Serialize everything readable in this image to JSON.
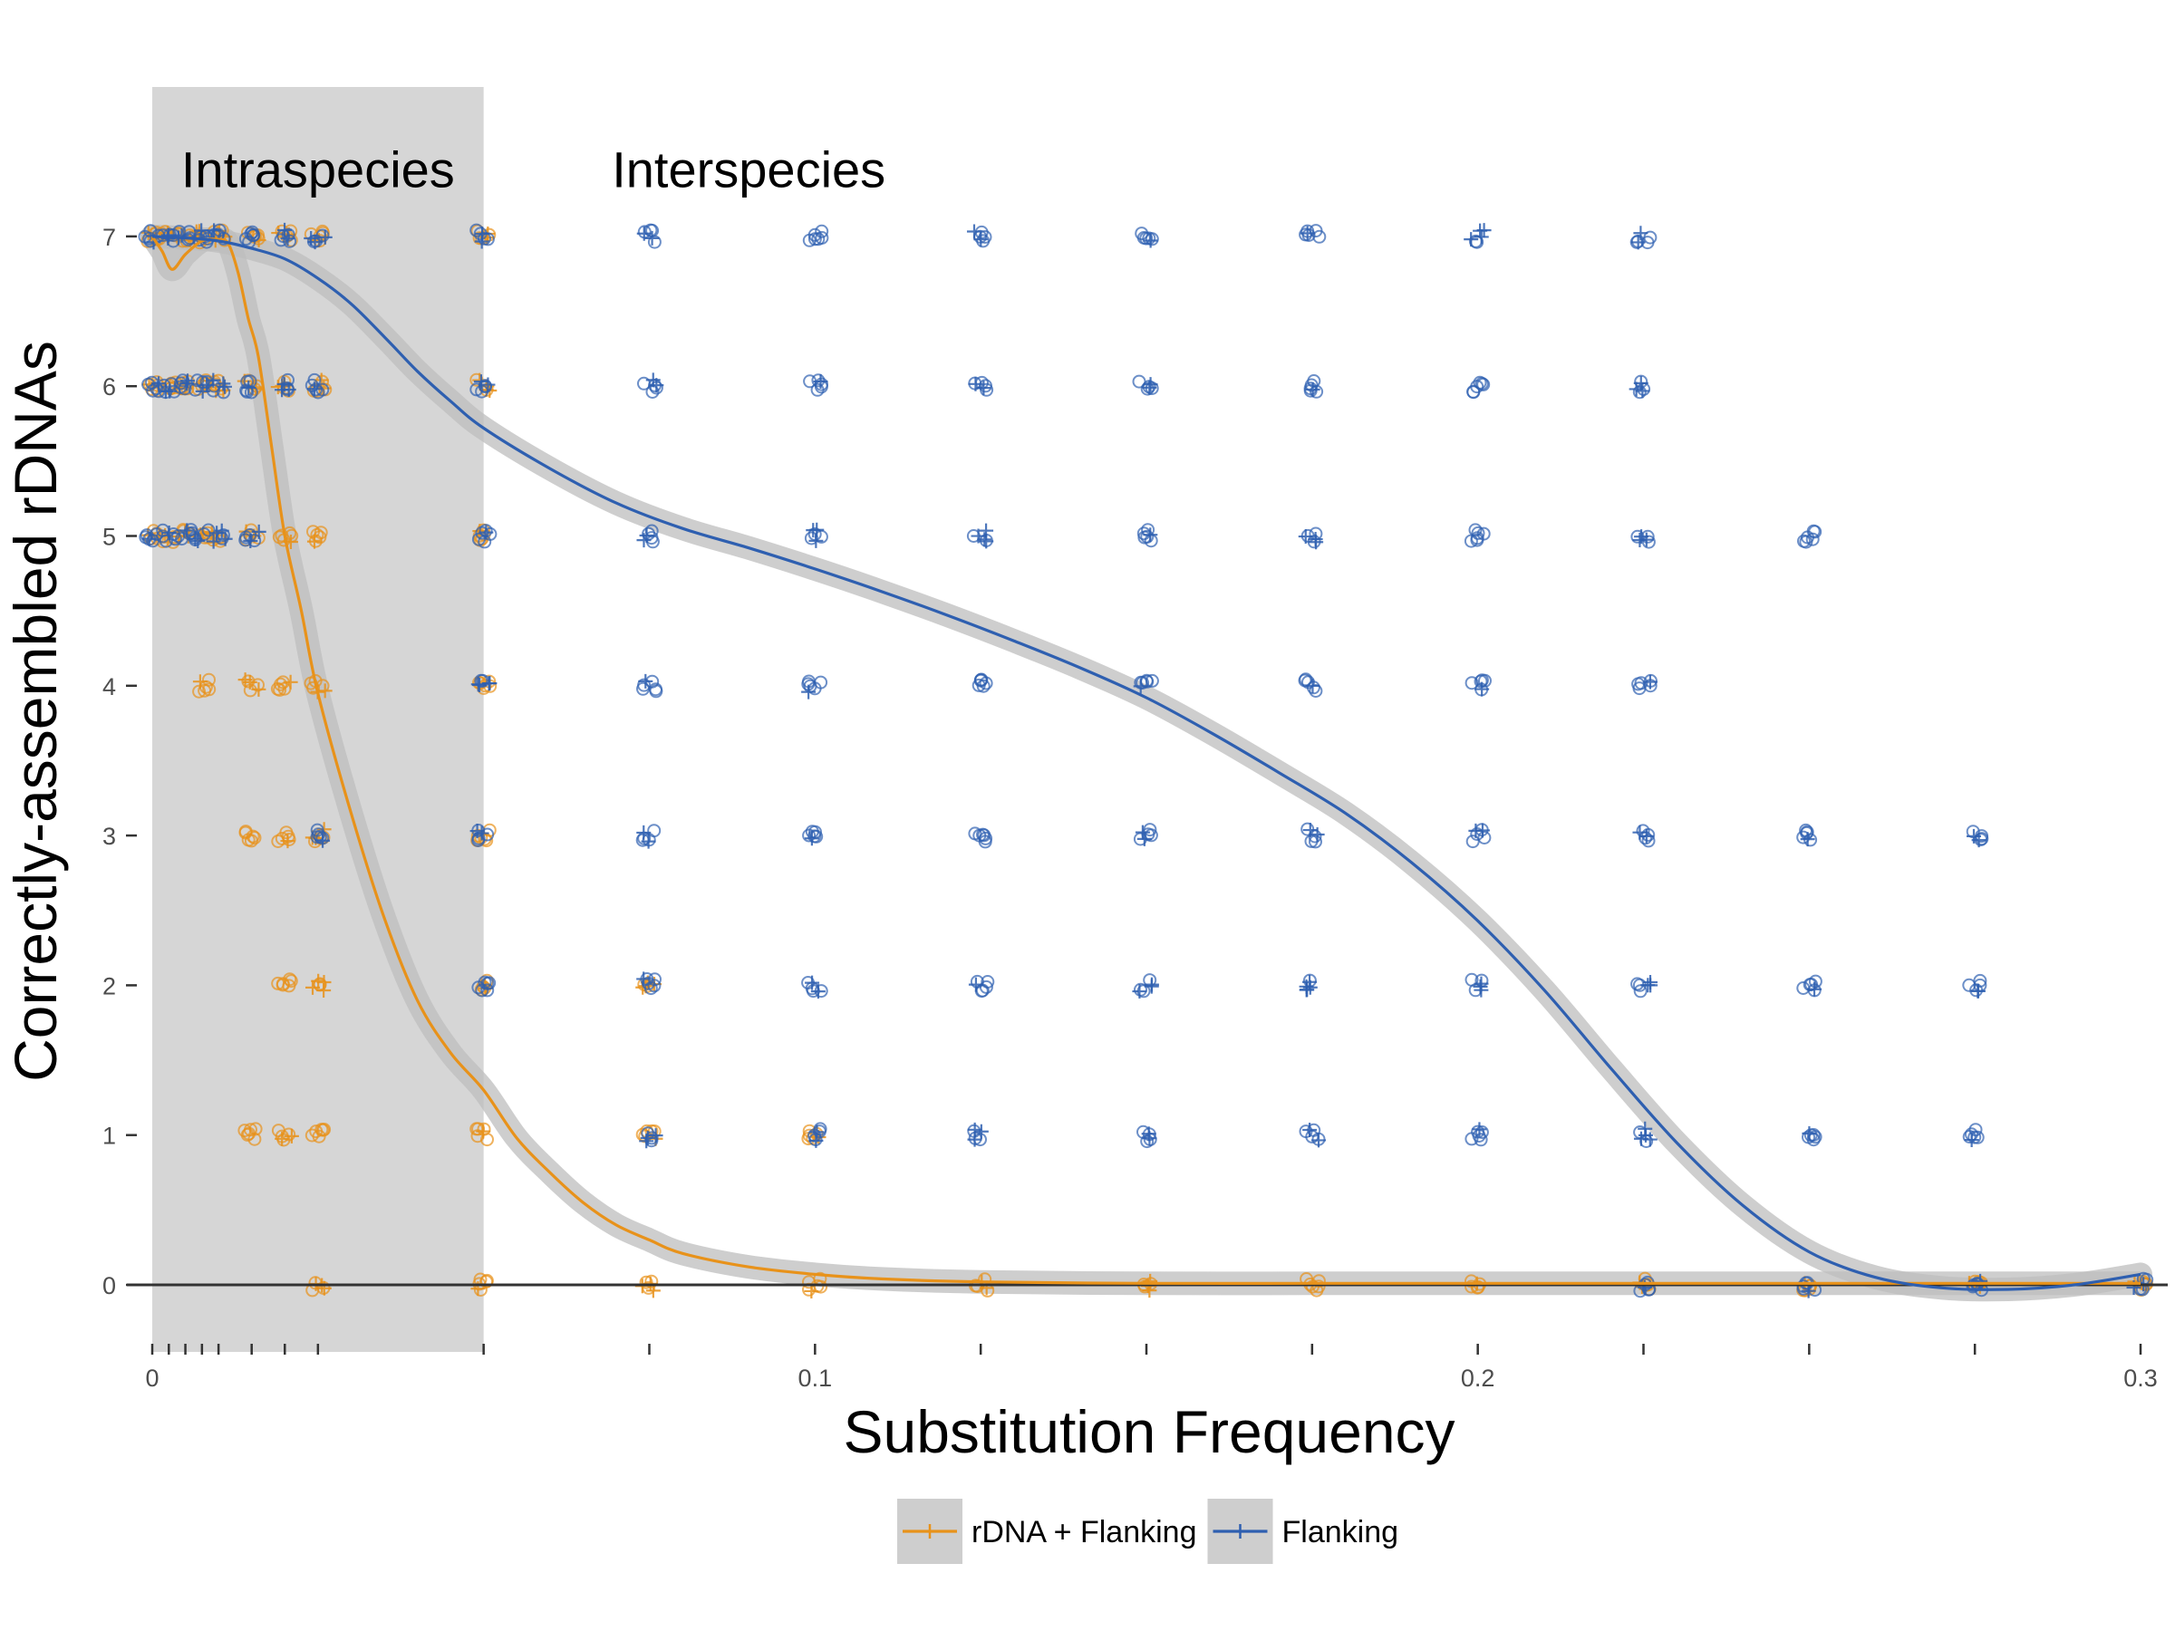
{
  "chart_data": {
    "type": "scatter",
    "xlabel": "Substitution Frequency",
    "ylabel": "Correctly-assembled rDNAs",
    "xlim": [
      0,
      0.3
    ],
    "ylim": [
      -0.45,
      7.5
    ],
    "x_tick_labels": [
      {
        "value": 0,
        "label": "0"
      },
      {
        "value": 0.1,
        "label": "0.1"
      },
      {
        "value": 0.2,
        "label": "0.2"
      },
      {
        "value": 0.3,
        "label": "0.3"
      }
    ],
    "x_minor_ticks": [
      0,
      0.0025,
      0.005,
      0.0075,
      0.01,
      0.015,
      0.02,
      0.025,
      0.05,
      0.075,
      0.1,
      0.125,
      0.15,
      0.175,
      0.2,
      0.225,
      0.25,
      0.275,
      0.3
    ],
    "y_ticks": [
      0,
      1,
      2,
      3,
      4,
      5,
      6,
      7
    ],
    "shaded_region": {
      "x": [
        0,
        0.05
      ],
      "color": "#d6d6d6"
    },
    "region_labels": [
      {
        "label": "Intraspecies",
        "x": 0.025,
        "y": 7.45
      },
      {
        "label": "Interspecies",
        "x": 0.09,
        "y": 7.45
      }
    ],
    "grid": false,
    "legend": {
      "position": "bottom"
    },
    "colors": {
      "rdna_flanking": "#E8921A",
      "flanking": "#2E5FB0",
      "band": "#bdbdbd",
      "zero_line": "#333333"
    },
    "series": [
      {
        "name": "rDNA + Flanking",
        "color": "#E8921A",
        "points_by_x": [
          {
            "x": 0,
            "y": [
              7,
              6,
              5
            ]
          },
          {
            "x": 0.0025,
            "y": [
              7,
              6,
              5
            ]
          },
          {
            "x": 0.005,
            "y": [
              7,
              6,
              5
            ]
          },
          {
            "x": 0.0075,
            "y": [
              7,
              6,
              5,
              4
            ]
          },
          {
            "x": 0.01,
            "y": [
              7,
              6,
              5
            ]
          },
          {
            "x": 0.015,
            "y": [
              7,
              6,
              5,
              4,
              3,
              1
            ]
          },
          {
            "x": 0.02,
            "y": [
              7,
              6,
              5,
              4,
              3,
              2,
              1
            ]
          },
          {
            "x": 0.025,
            "y": [
              7,
              6,
              5,
              4,
              3,
              2,
              1,
              0
            ]
          },
          {
            "x": 0.05,
            "y": [
              7,
              6,
              5,
              4,
              3,
              2,
              1,
              0
            ]
          },
          {
            "x": 0.075,
            "y": [
              2,
              1,
              0
            ]
          },
          {
            "x": 0.1,
            "y": [
              1,
              0
            ]
          },
          {
            "x": 0.125,
            "y": [
              0
            ]
          },
          {
            "x": 0.15,
            "y": [
              0
            ]
          },
          {
            "x": 0.175,
            "y": [
              0
            ]
          },
          {
            "x": 0.2,
            "y": [
              0
            ]
          },
          {
            "x": 0.225,
            "y": [
              0
            ]
          },
          {
            "x": 0.25,
            "y": [
              0
            ]
          },
          {
            "x": 0.275,
            "y": [
              0
            ]
          },
          {
            "x": 0.3,
            "y": [
              0
            ]
          }
        ],
        "smooth": {
          "x": [
            0,
            0.0015,
            0.003,
            0.005,
            0.0075,
            0.01,
            0.0115,
            0.013,
            0.0145,
            0.016,
            0.018,
            0.02,
            0.0225,
            0.025,
            0.03,
            0.035,
            0.04,
            0.045,
            0.05,
            0.055,
            0.06,
            0.065,
            0.07,
            0.075,
            0.08,
            0.09,
            0.1,
            0.11,
            0.125,
            0.15,
            0.175,
            0.2,
            0.225,
            0.25,
            0.275,
            0.3
          ],
          "y": [
            7,
            6.9,
            6.78,
            6.88,
            6.97,
            6.98,
            6.95,
            6.75,
            6.45,
            6.2,
            5.6,
            5.0,
            4.5,
            3.95,
            3.15,
            2.45,
            1.9,
            1.55,
            1.3,
            0.98,
            0.75,
            0.55,
            0.4,
            0.3,
            0.21,
            0.12,
            0.07,
            0.04,
            0.02,
            0.01,
            0.01,
            0.01,
            0.01,
            0.01,
            0.01,
            0.01
          ]
        }
      },
      {
        "name": "Flanking",
        "color": "#2E5FB0",
        "points_by_x": [
          {
            "x": 0,
            "y": [
              7,
              6,
              5
            ]
          },
          {
            "x": 0.0025,
            "y": [
              7,
              6,
              5
            ]
          },
          {
            "x": 0.005,
            "y": [
              7,
              6,
              5
            ]
          },
          {
            "x": 0.0075,
            "y": [
              7,
              6,
              5
            ]
          },
          {
            "x": 0.01,
            "y": [
              7,
              6,
              5
            ]
          },
          {
            "x": 0.015,
            "y": [
              7,
              6,
              5
            ]
          },
          {
            "x": 0.02,
            "y": [
              7,
              6
            ]
          },
          {
            "x": 0.025,
            "y": [
              7,
              6,
              3
            ]
          },
          {
            "x": 0.05,
            "y": [
              7,
              6,
              5,
              4,
              3,
              2
            ]
          },
          {
            "x": 0.075,
            "y": [
              7,
              6,
              5,
              4,
              3,
              2,
              1
            ]
          },
          {
            "x": 0.1,
            "y": [
              7,
              6,
              5,
              4,
              3,
              2,
              1
            ]
          },
          {
            "x": 0.125,
            "y": [
              7,
              6,
              5,
              4,
              3,
              2,
              1
            ]
          },
          {
            "x": 0.15,
            "y": [
              7,
              6,
              5,
              4,
              3,
              2,
              1
            ]
          },
          {
            "x": 0.175,
            "y": [
              7,
              6,
              5,
              4,
              3,
              2,
              1
            ]
          },
          {
            "x": 0.2,
            "y": [
              7,
              6,
              5,
              4,
              3,
              2,
              1
            ]
          },
          {
            "x": 0.225,
            "y": [
              7,
              6,
              5,
              4,
              3,
              2,
              1,
              0
            ]
          },
          {
            "x": 0.25,
            "y": [
              5,
              3,
              2,
              1,
              0
            ]
          },
          {
            "x": 0.275,
            "y": [
              3,
              2,
              1,
              0
            ]
          },
          {
            "x": 0.3,
            "y": [
              0
            ]
          }
        ],
        "smooth": {
          "x": [
            0,
            0.005,
            0.01,
            0.015,
            0.02,
            0.025,
            0.03,
            0.035,
            0.04,
            0.045,
            0.05,
            0.06,
            0.07,
            0.08,
            0.09,
            0.1,
            0.11,
            0.12,
            0.13,
            0.14,
            0.15,
            0.16,
            0.17,
            0.18,
            0.19,
            0.2,
            0.21,
            0.22,
            0.23,
            0.24,
            0.25,
            0.26,
            0.27,
            0.28,
            0.29,
            0.3
          ],
          "y": [
            7,
            6.99,
            6.97,
            6.92,
            6.85,
            6.72,
            6.55,
            6.33,
            6.1,
            5.9,
            5.72,
            5.45,
            5.22,
            5.05,
            4.92,
            4.78,
            4.63,
            4.47,
            4.3,
            4.12,
            3.92,
            3.68,
            3.42,
            3.15,
            2.82,
            2.43,
            1.97,
            1.45,
            0.95,
            0.53,
            0.22,
            0.05,
            -0.02,
            -0.03,
            0.0,
            0.07
          ]
        }
      }
    ]
  }
}
